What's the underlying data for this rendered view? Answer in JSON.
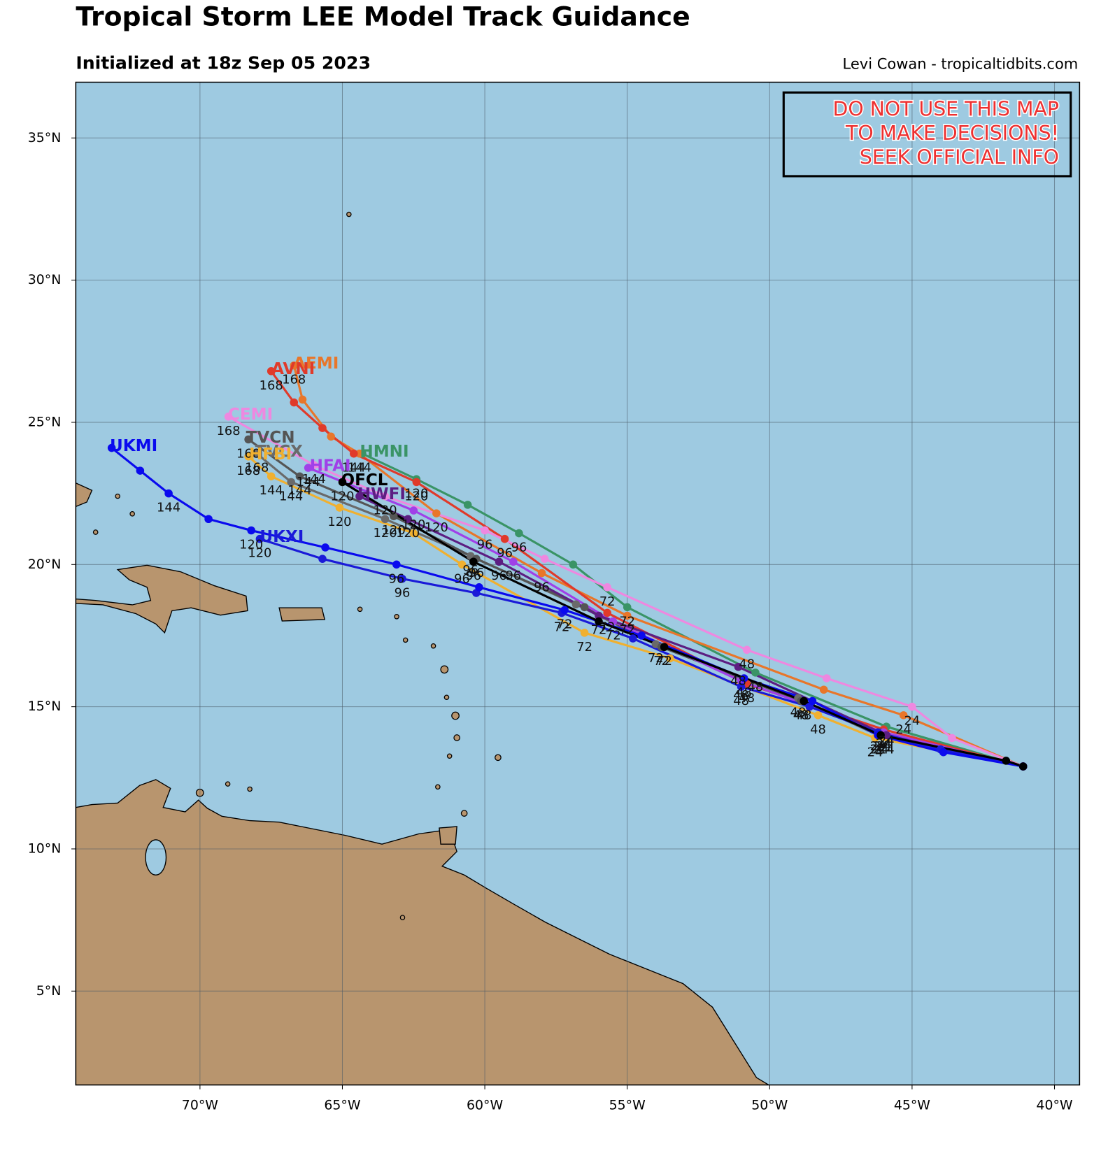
{
  "chart_data": {
    "type": "track-map",
    "title": "Tropical Storm LEE Model Track Guidance",
    "subtitle": "Initialized at 18z Sep 05 2023",
    "credit": "Levi Cowan - tropicaltidbits.com",
    "warning": [
      "DO NOT USE THIS MAP",
      "TO MAKE DECISIONS!",
      "SEEK OFFICIAL INFO"
    ],
    "xlim": [
      -74.36,
      -39.12
    ],
    "ylim": [
      1.7,
      36.96
    ],
    "xticks": [
      {
        "value": -70,
        "label": "70°W"
      },
      {
        "value": -65,
        "label": "65°W"
      },
      {
        "value": -60,
        "label": "60°W"
      },
      {
        "value": -55,
        "label": "55°W"
      },
      {
        "value": -50,
        "label": "50°W"
      },
      {
        "value": -45,
        "label": "45°W"
      },
      {
        "value": -40,
        "label": "40°W"
      }
    ],
    "yticks": [
      {
        "value": 5,
        "label": "5°N"
      },
      {
        "value": 10,
        "label": "10°N"
      },
      {
        "value": 15,
        "label": "15°N"
      },
      {
        "value": 20,
        "label": "20°N"
      },
      {
        "value": 25,
        "label": "25°N"
      },
      {
        "value": 30,
        "label": "30°N"
      },
      {
        "value": 35,
        "label": "35°N"
      }
    ],
    "grid": true,
    "series": [
      {
        "name": "HMNI",
        "color": "#3a9466",
        "x": [
          -41.1,
          -45.9,
          -50.5,
          -55.0,
          -56.9,
          -58.8,
          -60.6,
          -62.4,
          -64.3
        ],
        "values": [
          12.9,
          14.3,
          16.2,
          18.5,
          20.0,
          21.1,
          22.1,
          23.0,
          23.9
        ],
        "hour_labels": [
          null,
          "24",
          "48",
          "72",
          null,
          "96",
          null,
          "120",
          null
        ]
      },
      {
        "name": "AEMI",
        "color": "#e8762a",
        "x": [
          -41.1,
          -45.3,
          -48.1,
          -55.0,
          -58.0,
          -61.7,
          -64.4,
          -65.4,
          -66.4,
          -66.7
        ],
        "values": [
          12.9,
          14.7,
          15.6,
          18.2,
          19.7,
          21.8,
          23.9,
          24.5,
          25.8,
          27.0
        ],
        "hour_labels": [
          null,
          "24",
          null,
          "72",
          "96",
          "120",
          "144",
          null,
          null,
          "168"
        ]
      },
      {
        "name": "AVNI",
        "color": "#e03a2a",
        "x": [
          -41.1,
          -46.0,
          -50.8,
          -55.7,
          -59.3,
          -62.4,
          -64.6,
          -65.7,
          -66.7,
          -67.5
        ],
        "values": [
          12.9,
          14.2,
          15.8,
          18.3,
          20.9,
          22.9,
          23.9,
          24.8,
          25.7,
          26.8
        ],
        "hour_labels": [
          null,
          "24",
          "48",
          "72",
          "96",
          "120",
          "144",
          null,
          null,
          "168"
        ]
      },
      {
        "name": "CEMI",
        "color": "#ee88e0",
        "x": [
          -41.1,
          -43.6,
          -45.0,
          -48.0,
          -50.8,
          -55.7,
          -57.9,
          -60.0,
          -63.5,
          -66.0,
          -69.0
        ],
        "values": [
          12.9,
          13.9,
          15.0,
          16.0,
          17.0,
          19.2,
          20.2,
          21.2,
          22.4,
          23.5,
          25.2
        ],
        "hour_labels": [
          null,
          null,
          "24",
          null,
          "48",
          "72",
          null,
          "96",
          "120",
          "144",
          "168"
        ]
      },
      {
        "name": "TVCX",
        "color": "#6a6a6a",
        "x": [
          -41.1,
          -46.2,
          -49.0,
          -54.0,
          -56.8,
          -60.5,
          -63.5,
          -66.8,
          -68.0
        ],
        "values": [
          12.9,
          14.0,
          15.3,
          17.2,
          18.6,
          20.3,
          21.6,
          22.9,
          23.9
        ],
        "hour_labels": [
          null,
          "24",
          "48",
          "72",
          null,
          "96",
          "120",
          "144",
          "168"
        ]
      },
      {
        "name": "TVCN",
        "color": "#555555",
        "x": [
          -41.1,
          -46.1,
          -48.9,
          -53.8,
          -56.5,
          -60.3,
          -63.2,
          -66.5,
          -68.3
        ],
        "values": [
          12.9,
          14.1,
          15.2,
          17.1,
          18.5,
          20.2,
          21.7,
          23.1,
          24.4
        ],
        "hour_labels": [
          null,
          "24",
          "48",
          "72",
          null,
          "96",
          "120",
          "144",
          "168"
        ]
      },
      {
        "name": "HFBI",
        "color": "#f0b030",
        "x": [
          -41.1,
          -46.3,
          -48.3,
          -53.5,
          -56.5,
          -60.8,
          -62.5,
          -65.1,
          -67.5,
          -68.3
        ],
        "values": [
          12.9,
          13.9,
          14.7,
          16.7,
          17.6,
          20.0,
          21.1,
          22.0,
          23.1,
          23.8
        ],
        "hour_labels": [
          null,
          "24",
          "48",
          null,
          "72",
          "96",
          null,
          "120",
          "144",
          "168"
        ]
      },
      {
        "name": "HFAI",
        "color": "#a040e8",
        "x": [
          -41.1,
          -46.0,
          -51.0,
          -55.5,
          -59.0,
          -62.5,
          -66.2
        ],
        "values": [
          12.9,
          14.1,
          15.9,
          18.0,
          20.1,
          21.9,
          23.4
        ],
        "hour_labels": [
          null,
          "24",
          "48",
          "72",
          "96",
          "120",
          "144"
        ]
      },
      {
        "name": "HWFI",
        "color": "#5c1e82",
        "x": [
          -41.1,
          -45.9,
          -51.1,
          -56.0,
          -59.5,
          -62.7,
          -64.4
        ],
        "values": [
          12.9,
          14.0,
          16.4,
          18.2,
          20.1,
          21.6,
          22.4
        ],
        "hour_labels": [
          null,
          "24",
          "48",
          "72",
          "96",
          "120",
          null
        ]
      },
      {
        "name": "UKXI",
        "color": "#1a1ad8",
        "x": [
          -41.1,
          -44.0,
          -46.2,
          -48.6,
          -51.0,
          -54.8,
          -57.3,
          -60.3,
          -62.9,
          -65.7,
          -67.9
        ],
        "values": [
          12.9,
          13.5,
          14.1,
          15.0,
          15.7,
          17.4,
          18.3,
          19.0,
          19.5,
          20.2,
          20.9
        ],
        "hour_labels": [
          null,
          null,
          "24",
          null,
          "48",
          null,
          "72",
          null,
          "96",
          null,
          "120"
        ]
      },
      {
        "name": "UKMI",
        "color": "#0a0aee",
        "x": [
          -41.1,
          -43.9,
          -46.2,
          -48.5,
          -50.9,
          -54.5,
          -57.2,
          -60.2,
          -63.1,
          -65.6,
          -68.2,
          -69.7,
          -71.1,
          -72.1,
          -73.1
        ],
        "values": [
          12.9,
          13.4,
          14.0,
          15.2,
          16.0,
          17.5,
          18.4,
          19.2,
          20.0,
          20.6,
          21.2,
          21.6,
          22.5,
          23.3,
          24.1
        ],
        "hour_labels": [
          null,
          null,
          "24",
          null,
          "48",
          null,
          "72",
          null,
          "96",
          null,
          "120",
          null,
          "144",
          null,
          null
        ]
      },
      {
        "name": "OFCL",
        "color": "#000000",
        "x": [
          -41.1,
          -41.7,
          -46.1,
          -48.8,
          -53.7,
          -56.0,
          -60.4,
          -65.0
        ],
        "values": [
          12.9,
          13.1,
          14.0,
          15.2,
          17.1,
          18.0,
          20.1,
          22.9
        ],
        "hour_labels": [
          null,
          null,
          "24",
          "48",
          "72",
          null,
          "96",
          "120"
        ]
      }
    ]
  }
}
